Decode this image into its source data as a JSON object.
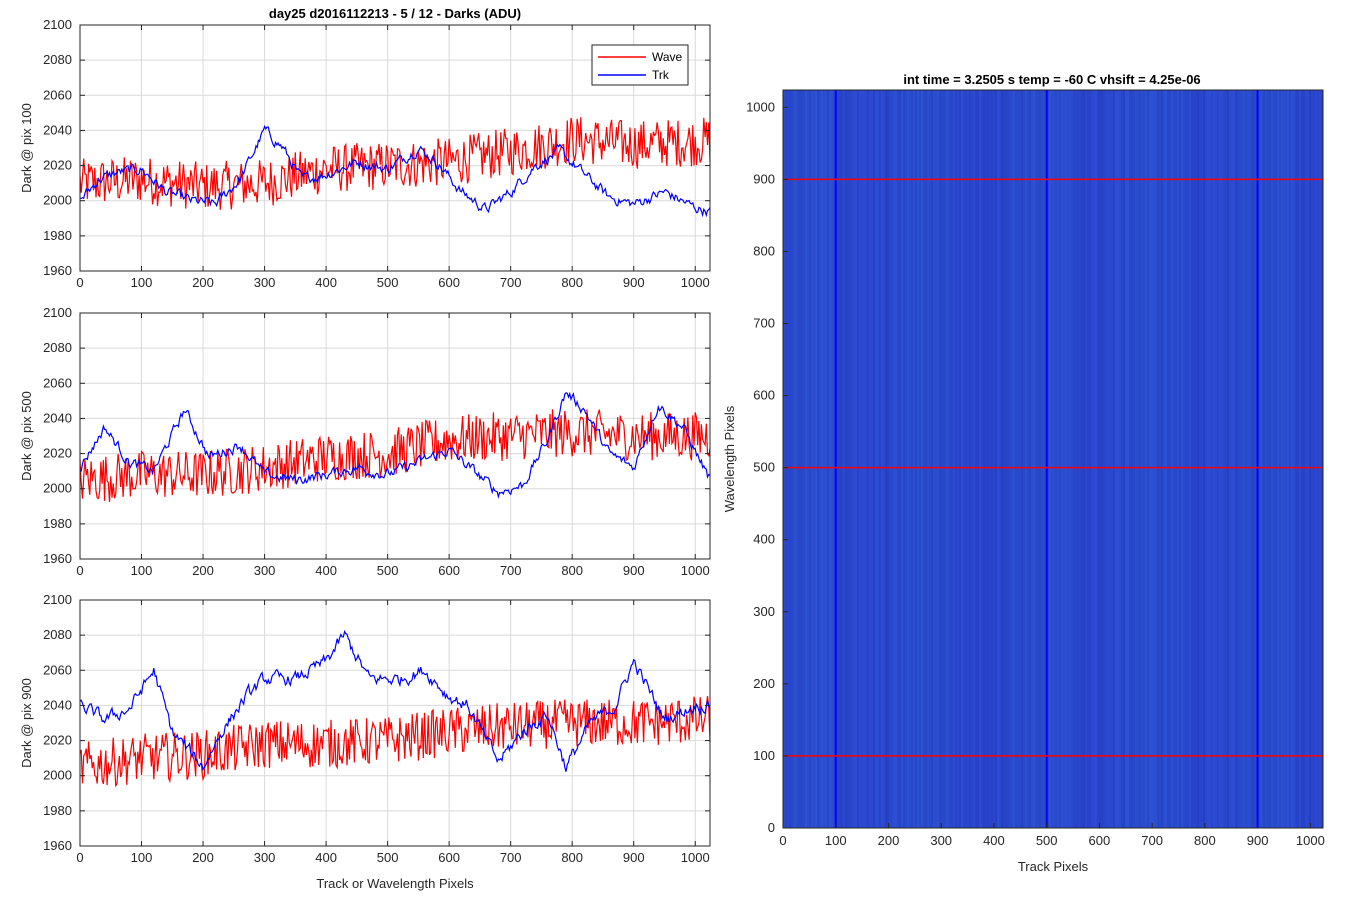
{
  "figure_title": "day25 d2016112213 - 5 / 12 - Darks (ADU)",
  "colors": {
    "wave": "#ff0000",
    "trk": "#0000ff",
    "grid": "#d9d9d9",
    "axis": "#262626",
    "heat_base": "#2a4bcc"
  },
  "legend": {
    "placement": "top-right",
    "items": [
      {
        "label": "Wave",
        "color": "#ff0000"
      },
      {
        "label": "Trk",
        "color": "#0000ff"
      }
    ]
  },
  "chart_data": [
    {
      "type": "line",
      "ylabel": "Dark @ pix 100",
      "xlim": [
        0,
        1024
      ],
      "ylim": [
        1960,
        2100
      ],
      "xticks": [
        0,
        100,
        200,
        300,
        400,
        500,
        600,
        700,
        800,
        900,
        1000
      ],
      "yticks": [
        1960,
        1980,
        2000,
        2020,
        2040,
        2060,
        2080,
        2100
      ],
      "grid": true,
      "series": [
        {
          "name": "Wave",
          "color": "#ff0000",
          "kp": [
            [
              0,
              2010
            ],
            [
              100,
              2012
            ],
            [
              200,
              2008
            ],
            [
              300,
              2010
            ],
            [
              400,
              2018
            ],
            [
              500,
              2020
            ],
            [
              600,
              2022
            ],
            [
              700,
              2028
            ],
            [
              800,
              2035
            ],
            [
              900,
              2032
            ],
            [
              1024,
              2034
            ]
          ],
          "noise": 14
        },
        {
          "name": "Trk",
          "color": "#0000ff",
          "kp": [
            [
              0,
              2000
            ],
            [
              30,
              2012
            ],
            [
              60,
              2016
            ],
            [
              100,
              2018
            ],
            [
              140,
              2005
            ],
            [
              180,
              2000
            ],
            [
              220,
              1998
            ],
            [
              260,
              2012
            ],
            [
              300,
              2040
            ],
            [
              330,
              2030
            ],
            [
              360,
              2012
            ],
            [
              400,
              2015
            ],
            [
              450,
              2022
            ],
            [
              500,
              2018
            ],
            [
              550,
              2030
            ],
            [
              580,
              2022
            ],
            [
              620,
              2005
            ],
            [
              660,
              1995
            ],
            [
              700,
              2005
            ],
            [
              740,
              2020
            ],
            [
              780,
              2028
            ],
            [
              820,
              2015
            ],
            [
              860,
              2002
            ],
            [
              900,
              1998
            ],
            [
              950,
              2005
            ],
            [
              1000,
              1996
            ],
            [
              1024,
              1994
            ]
          ],
          "noise": 5
        }
      ]
    },
    {
      "type": "line",
      "ylabel": "Dark @ pix 500",
      "xlim": [
        0,
        1024
      ],
      "ylim": [
        1960,
        2100
      ],
      "xticks": [
        0,
        100,
        200,
        300,
        400,
        500,
        600,
        700,
        800,
        900,
        1000
      ],
      "yticks": [
        1960,
        1980,
        2000,
        2020,
        2040,
        2060,
        2080,
        2100
      ],
      "grid": true,
      "series": [
        {
          "name": "Wave",
          "color": "#ff0000",
          "kp": [
            [
              0,
              2005
            ],
            [
              100,
              2008
            ],
            [
              200,
              2008
            ],
            [
              300,
              2012
            ],
            [
              400,
              2018
            ],
            [
              500,
              2020
            ],
            [
              600,
              2028
            ],
            [
              700,
              2030
            ],
            [
              800,
              2032
            ],
            [
              900,
              2030
            ],
            [
              1024,
              2030
            ]
          ],
          "noise": 14
        },
        {
          "name": "Trk",
          "color": "#0000ff",
          "kp": [
            [
              0,
              2012
            ],
            [
              40,
              2035
            ],
            [
              80,
              2015
            ],
            [
              120,
              2010
            ],
            [
              170,
              2045
            ],
            [
              210,
              2018
            ],
            [
              260,
              2025
            ],
            [
              300,
              2008
            ],
            [
              350,
              2005
            ],
            [
              400,
              2008
            ],
            [
              450,
              2012
            ],
            [
              500,
              2008
            ],
            [
              550,
              2015
            ],
            [
              600,
              2022
            ],
            [
              640,
              2010
            ],
            [
              680,
              1998
            ],
            [
              720,
              2002
            ],
            [
              760,
              2028
            ],
            [
              790,
              2055
            ],
            [
              820,
              2045
            ],
            [
              860,
              2020
            ],
            [
              900,
              2012
            ],
            [
              940,
              2048
            ],
            [
              980,
              2035
            ],
            [
              1024,
              2005
            ]
          ],
          "noise": 5
        }
      ]
    },
    {
      "type": "line",
      "ylabel": "Dark @ pix 900",
      "xlabel": "Track or Wavelength Pixels",
      "xlim": [
        0,
        1024
      ],
      "ylim": [
        1960,
        2100
      ],
      "xticks": [
        0,
        100,
        200,
        300,
        400,
        500,
        600,
        700,
        800,
        900,
        1000
      ],
      "yticks": [
        1960,
        1980,
        2000,
        2020,
        2040,
        2060,
        2080,
        2100
      ],
      "grid": true,
      "series": [
        {
          "name": "Wave",
          "color": "#ff0000",
          "kp": [
            [
              0,
              2005
            ],
            [
              100,
              2010
            ],
            [
              200,
              2012
            ],
            [
              300,
              2018
            ],
            [
              400,
              2018
            ],
            [
              500,
              2020
            ],
            [
              600,
              2025
            ],
            [
              700,
              2028
            ],
            [
              800,
              2030
            ],
            [
              900,
              2030
            ],
            [
              1024,
              2032
            ]
          ],
          "noise": 14
        },
        {
          "name": "Trk",
          "color": "#0000ff",
          "kp": [
            [
              0,
              2040
            ],
            [
              40,
              2032
            ],
            [
              80,
              2038
            ],
            [
              120,
              2060
            ],
            [
              150,
              2025
            ],
            [
              200,
              2005
            ],
            [
              230,
              2025
            ],
            [
              270,
              2045
            ],
            [
              300,
              2055
            ],
            [
              350,
              2055
            ],
            [
              400,
              2065
            ],
            [
              430,
              2080
            ],
            [
              470,
              2055
            ],
            [
              520,
              2055
            ],
            [
              560,
              2060
            ],
            [
              600,
              2045
            ],
            [
              630,
              2040
            ],
            [
              680,
              2008
            ],
            [
              720,
              2025
            ],
            [
              760,
              2035
            ],
            [
              790,
              2005
            ],
            [
              830,
              2030
            ],
            [
              870,
              2040
            ],
            [
              900,
              2065
            ],
            [
              950,
              2032
            ],
            [
              1000,
              2040
            ],
            [
              1024,
              2040
            ]
          ],
          "noise": 6
        }
      ]
    },
    {
      "type": "heatmap",
      "title": "int time = 3.2505 s    temp = -60 C    vhsift = 4.25e-06",
      "xlabel": "Track Pixels",
      "ylabel": "Wavelength Pixels",
      "xlim": [
        0,
        1024
      ],
      "ylim": [
        0,
        1024
      ],
      "xticks": [
        0,
        100,
        200,
        300,
        400,
        500,
        600,
        700,
        800,
        900,
        1000
      ],
      "yticks": [
        0,
        100,
        200,
        300,
        400,
        500,
        600,
        700,
        800,
        900,
        1000
      ],
      "vertical_lines": [
        100,
        500,
        900
      ],
      "horizontal_lines": [
        100,
        500,
        900
      ],
      "vline_color": "#0000ff",
      "hline_color": "#ff0000"
    }
  ]
}
